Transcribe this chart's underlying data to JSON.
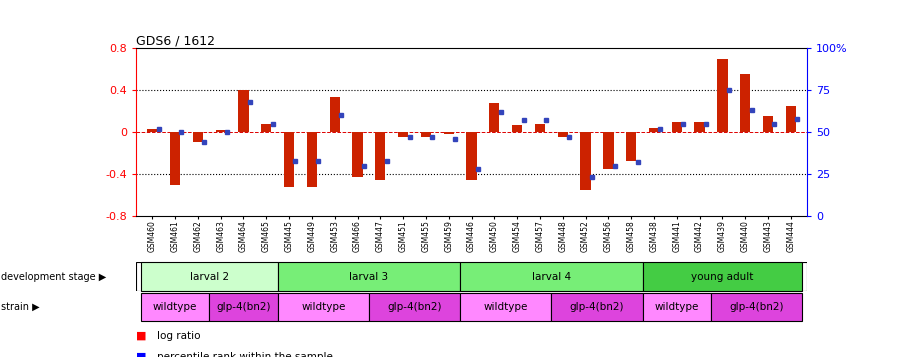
{
  "title": "GDS6 / 1612",
  "samples": [
    "GSM460",
    "GSM461",
    "GSM462",
    "GSM463",
    "GSM464",
    "GSM465",
    "GSM445",
    "GSM449",
    "GSM453",
    "GSM466",
    "GSM447",
    "GSM451",
    "GSM455",
    "GSM459",
    "GSM446",
    "GSM450",
    "GSM454",
    "GSM457",
    "GSM448",
    "GSM452",
    "GSM456",
    "GSM458",
    "GSM438",
    "GSM441",
    "GSM442",
    "GSM439",
    "GSM440",
    "GSM443",
    "GSM444"
  ],
  "log_ratio": [
    0.03,
    -0.5,
    -0.09,
    0.02,
    0.4,
    0.08,
    -0.52,
    -0.52,
    0.33,
    -0.43,
    -0.46,
    -0.05,
    -0.05,
    -0.02,
    -0.46,
    0.28,
    0.07,
    0.08,
    -0.05,
    -0.55,
    -0.35,
    -0.28,
    0.04,
    0.1,
    0.1,
    0.7,
    0.55,
    0.15,
    0.25
  ],
  "percentile": [
    52,
    50,
    44,
    50,
    68,
    55,
    33,
    33,
    60,
    30,
    33,
    47,
    47,
    46,
    28,
    62,
    57,
    57,
    47,
    23,
    30,
    32,
    52,
    55,
    55,
    75,
    63,
    55,
    58
  ],
  "ylim": [
    -0.8,
    0.8
  ],
  "y2lim": [
    0,
    100
  ],
  "yticks_left": [
    -0.8,
    -0.4,
    0.0,
    0.4,
    0.8
  ],
  "ytick_labels_left": [
    "-0.8",
    "-0.4",
    "0",
    "0.4",
    "0.8"
  ],
  "yticks_right": [
    0,
    25,
    50,
    75,
    100
  ],
  "ytick_labels_right": [
    "0",
    "25",
    "50",
    "75",
    "100%"
  ],
  "bar_color": "#cc2200",
  "dot_color": "#3344bb",
  "zero_line_color": "#dd0000",
  "stage_colors": [
    "#ccffcc",
    "#77ee77",
    "#77ee77",
    "#44cc44"
  ],
  "stage_labels": [
    "larval 2",
    "larval 3",
    "larval 4",
    "young adult"
  ],
  "stage_ranges": [
    [
      0,
      6
    ],
    [
      6,
      14
    ],
    [
      14,
      22
    ],
    [
      22,
      29
    ]
  ],
  "strain_labels": [
    "wildtype",
    "glp-4(bn2)",
    "wildtype",
    "glp-4(bn2)",
    "wildtype",
    "glp-4(bn2)",
    "wildtype",
    "glp-4(bn2)"
  ],
  "strain_ranges": [
    [
      0,
      3
    ],
    [
      3,
      6
    ],
    [
      6,
      10
    ],
    [
      10,
      14
    ],
    [
      14,
      18
    ],
    [
      18,
      22
    ],
    [
      22,
      25
    ],
    [
      25,
      29
    ]
  ],
  "strain_colors": [
    "#ff88ff",
    "#dd44dd",
    "#ff88ff",
    "#dd44dd",
    "#ff88ff",
    "#dd44dd",
    "#ff88ff",
    "#dd44dd"
  ]
}
